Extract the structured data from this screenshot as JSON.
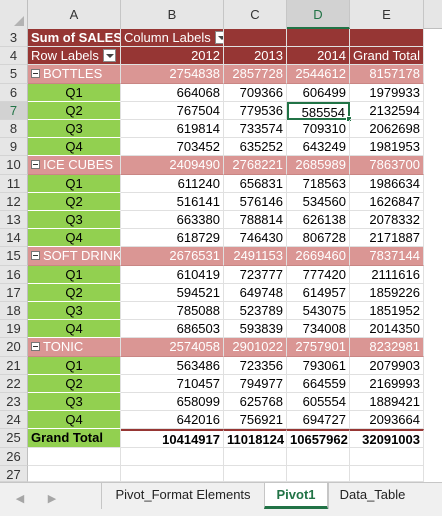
{
  "columns": [
    "A",
    "B",
    "C",
    "D",
    "E"
  ],
  "selected_column": "D",
  "rows": {
    "r3": {
      "num": "3",
      "a": "Sum of SALES",
      "b": "Column Labels"
    },
    "r4": {
      "num": "4",
      "a": "Row Labels",
      "b": "2012",
      "c": "2013",
      "d": "2014",
      "e": "Grand Total"
    },
    "r5": {
      "num": "5",
      "a": "BOTTLES",
      "b": "2754838",
      "c": "2857728",
      "d": "2544612",
      "e": "8157178"
    },
    "r6": {
      "num": "6",
      "a": "Q1",
      "b": "664068",
      "c": "709366",
      "d": "606499",
      "e": "1979933"
    },
    "r7": {
      "num": "7",
      "a": "Q2",
      "b": "767504",
      "c": "779536",
      "d": "585554",
      "e": "2132594"
    },
    "r8": {
      "num": "8",
      "a": "Q3",
      "b": "619814",
      "c": "733574",
      "d": "709310",
      "e": "2062698"
    },
    "r9": {
      "num": "9",
      "a": "Q4",
      "b": "703452",
      "c": "635252",
      "d": "643249",
      "e": "1981953"
    },
    "r10": {
      "num": "10",
      "a": "ICE CUBES",
      "b": "2409490",
      "c": "2768221",
      "d": "2685989",
      "e": "7863700"
    },
    "r11": {
      "num": "11",
      "a": "Q1",
      "b": "611240",
      "c": "656831",
      "d": "718563",
      "e": "1986634"
    },
    "r12": {
      "num": "12",
      "a": "Q2",
      "b": "516141",
      "c": "576146",
      "d": "534560",
      "e": "1626847"
    },
    "r13": {
      "num": "13",
      "a": "Q3",
      "b": "663380",
      "c": "788814",
      "d": "626138",
      "e": "2078332"
    },
    "r14": {
      "num": "14",
      "a": "Q4",
      "b": "618729",
      "c": "746430",
      "d": "806728",
      "e": "2171887"
    },
    "r15": {
      "num": "15",
      "a": "SOFT DRINKS",
      "b": "2676531",
      "c": "2491153",
      "d": "2669460",
      "e": "7837144"
    },
    "r16": {
      "num": "16",
      "a": "Q1",
      "b": "610419",
      "c": "723777",
      "d": "777420",
      "e": "2111616"
    },
    "r17": {
      "num": "17",
      "a": "Q2",
      "b": "594521",
      "c": "649748",
      "d": "614957",
      "e": "1859226"
    },
    "r18": {
      "num": "18",
      "a": "Q3",
      "b": "785088",
      "c": "523789",
      "d": "543075",
      "e": "1851952"
    },
    "r19": {
      "num": "19",
      "a": "Q4",
      "b": "686503",
      "c": "593839",
      "d": "734008",
      "e": "2014350"
    },
    "r20": {
      "num": "20",
      "a": "TONIC",
      "b": "2574058",
      "c": "2901022",
      "d": "2757901",
      "e": "8232981"
    },
    "r21": {
      "num": "21",
      "a": "Q1",
      "b": "563486",
      "c": "723356",
      "d": "793061",
      "e": "2079903"
    },
    "r22": {
      "num": "22",
      "a": "Q2",
      "b": "710457",
      "c": "794977",
      "d": "664559",
      "e": "2169993"
    },
    "r23": {
      "num": "23",
      "a": "Q3",
      "b": "658099",
      "c": "625768",
      "d": "605554",
      "e": "1889421"
    },
    "r24": {
      "num": "24",
      "a": "Q4",
      "b": "642016",
      "c": "756921",
      "d": "694727",
      "e": "2093664"
    },
    "r25": {
      "num": "25",
      "a": "Grand Total",
      "b": "10414917",
      "c": "11018124",
      "d": "10657962",
      "e": "32091003"
    },
    "r26": {
      "num": "26"
    },
    "r27": {
      "num": "27"
    }
  },
  "sheet_tabs": {
    "tab1": "Pivot_Format Elements",
    "tab2": "Pivot1",
    "tab3": "Data_Table",
    "active": "Pivot1"
  },
  "colors": {
    "header_dark": "#963634",
    "group_row": "#da9694",
    "quarter_fill": "#92d050",
    "excel_green": "#217346"
  }
}
